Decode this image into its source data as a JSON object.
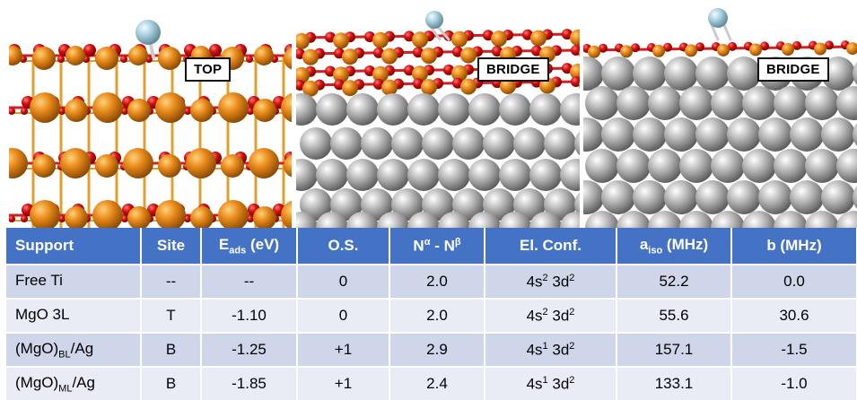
{
  "panels": [
    {
      "label": "TOP",
      "surface": "MgO 3L"
    },
    {
      "label": "BRIDGE",
      "surface": "(MgO)BL/Ag"
    },
    {
      "label": "BRIDGE",
      "surface": "(MgO)ML/Ag"
    }
  ],
  "colors": {
    "mg_atom": "#e8891a",
    "o_atom": "#d41010",
    "ag_atom": "#b8b8b8",
    "ti_atom": "#a9cfdf",
    "header_bg": "#4472c4",
    "row_odd": "#cfd6ea",
    "row_even": "#e9ecf5"
  },
  "table": {
    "headers": {
      "support": "Support",
      "site": "Site",
      "eads_main": "E",
      "eads_sub": "ads",
      "eads_unit": " (eV)",
      "os": "O.S.",
      "n_main": "N",
      "n_sup1": "α",
      "n_mid": " - N",
      "n_sup2": "β",
      "elconf": "El. Conf.",
      "aiso_main": "a",
      "aiso_sub": "iso",
      "aiso_unit": " (MHz)",
      "b": "b (MHz)"
    },
    "rows": [
      {
        "support_main": "Free Ti",
        "support_sub": "",
        "support_tail": "",
        "site": "--",
        "eads": "--",
        "os": "0",
        "n": "2.0",
        "conf_s": "4s",
        "conf_s_sup": "2",
        "conf_d": " 3d",
        "conf_d_sup": "2",
        "aiso": "52.2",
        "b": "0.0"
      },
      {
        "support_main": "MgO 3L",
        "support_sub": "",
        "support_tail": "",
        "site": "T",
        "eads": "-1.10",
        "os": "0",
        "n": "2.0",
        "conf_s": "4s",
        "conf_s_sup": "2",
        "conf_d": " 3d",
        "conf_d_sup": "2",
        "aiso": "55.6",
        "b": "30.6"
      },
      {
        "support_main": "(MgO)",
        "support_sub": "BL",
        "support_tail": "/Ag",
        "site": "B",
        "eads": "-1.25",
        "os": "+1",
        "n": "2.9",
        "conf_s": "4s",
        "conf_s_sup": "1",
        "conf_d": " 3d",
        "conf_d_sup": "2",
        "aiso": "157.1",
        "b": "-1.5"
      },
      {
        "support_main": "(MgO)",
        "support_sub": "ML",
        "support_tail": "/Ag",
        "site": "B",
        "eads": "-1.85",
        "os": "+1",
        "n": "2.4",
        "conf_s": "4s",
        "conf_s_sup": "1",
        "conf_d": " 3d",
        "conf_d_sup": "2",
        "aiso": "133.1",
        "b": "-1.0"
      }
    ]
  }
}
